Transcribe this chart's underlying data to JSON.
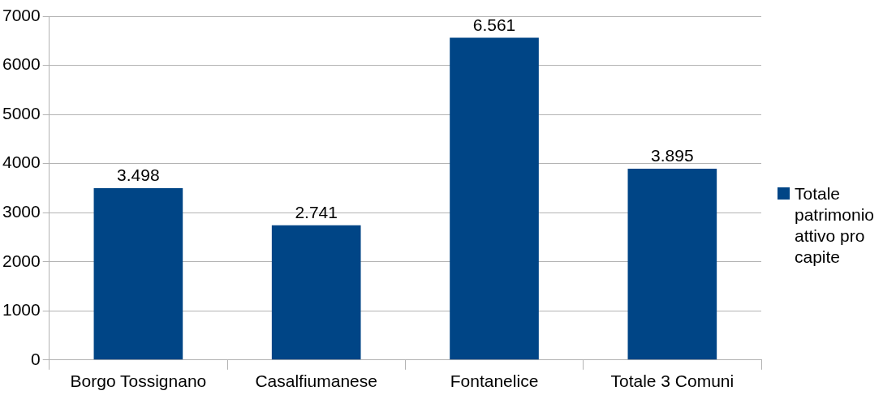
{
  "chart_data": {
    "type": "bar",
    "categories": [
      "Borgo Tossignano",
      "Casalfiumanese",
      "Fontanelice",
      "Totale 3 Comuni"
    ],
    "series": [
      {
        "name": "Totale patrimonio attivo pro capite",
        "color": "#004586",
        "values": [
          3498,
          2741,
          6561,
          3895
        ],
        "value_labels": [
          "3.498",
          "2.741",
          "6.561",
          "3.895"
        ]
      }
    ],
    "ylim": [
      0,
      7000
    ],
    "yticks": [
      0,
      1000,
      2000,
      3000,
      4000,
      5000,
      6000,
      7000
    ],
    "grid": "y",
    "legend": "right"
  }
}
